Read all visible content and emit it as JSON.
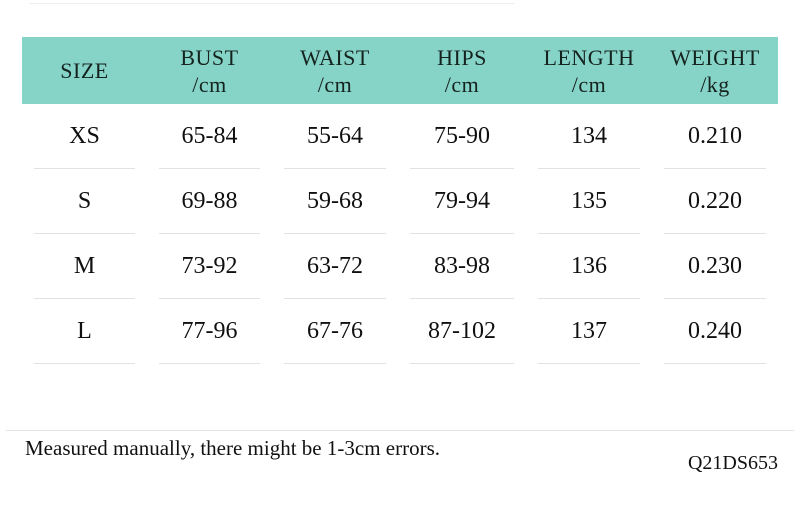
{
  "colors": {
    "header_bg": "#86d3c7",
    "separator": "#e2e2e2",
    "text": "#111111"
  },
  "table": {
    "columns": [
      {
        "label": "SIZE",
        "unit": ""
      },
      {
        "label": "BUST",
        "unit": "/cm"
      },
      {
        "label": "WAIST",
        "unit": "/cm"
      },
      {
        "label": "HIPS",
        "unit": "/cm"
      },
      {
        "label": "LENGTH",
        "unit": "/cm"
      },
      {
        "label": "WEIGHT",
        "unit": "/kg"
      }
    ],
    "rows": [
      [
        "XS",
        "65-84",
        "55-64",
        "75-90",
        "134",
        "0.210"
      ],
      [
        "S",
        "69-88",
        "59-68",
        "79-94",
        "135",
        "0.220"
      ],
      [
        "M",
        "73-92",
        "63-72",
        "83-98",
        "136",
        "0.230"
      ],
      [
        "L",
        "77-96",
        "67-76",
        "87-102",
        "137",
        "0.240"
      ]
    ]
  },
  "footer": {
    "note": "Measured manually, there might be 1-3cm errors.",
    "product_code": "Q21DS653"
  }
}
